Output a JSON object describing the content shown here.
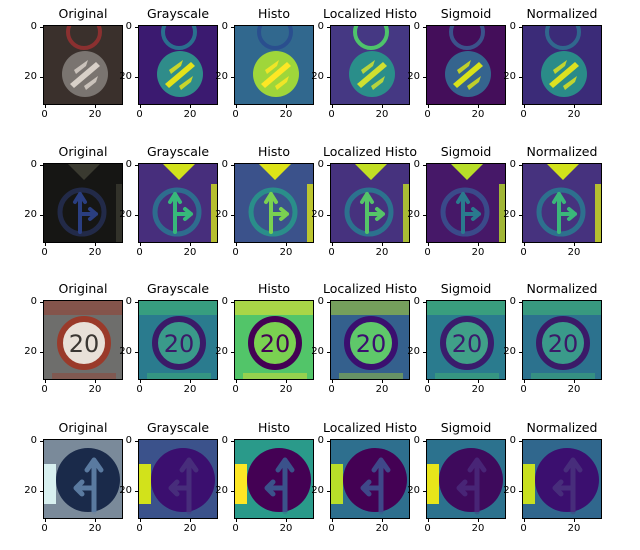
{
  "figure": {
    "rows": [
      {
        "sign": "end-restriction",
        "panel_titles": [
          "Original",
          "Grayscale",
          "Histo",
          "Localized Histo",
          "Sigmoid",
          "Normalized"
        ]
      },
      {
        "sign": "go-straight-or-right",
        "panel_titles": [
          "Original",
          "Grayscale",
          "Histo",
          "Localized Histo",
          "Sigmoid",
          "Normalized"
        ]
      },
      {
        "sign": "speed-limit-20",
        "sign_text": "20",
        "panel_titles": [
          "Original",
          "Grayscale",
          "Histo",
          "Localized Histo",
          "Sigmoid",
          "Normalized"
        ]
      },
      {
        "sign": "go-straight-or-left",
        "panel_titles": [
          "Original",
          "Grayscale",
          "Histo",
          "Localized Histo",
          "Sigmoid",
          "Normalized"
        ]
      }
    ],
    "x_tick_labels": [
      "0",
      "20"
    ],
    "y_tick_labels": [
      "0",
      "20"
    ],
    "colormap": "viridis"
  }
}
